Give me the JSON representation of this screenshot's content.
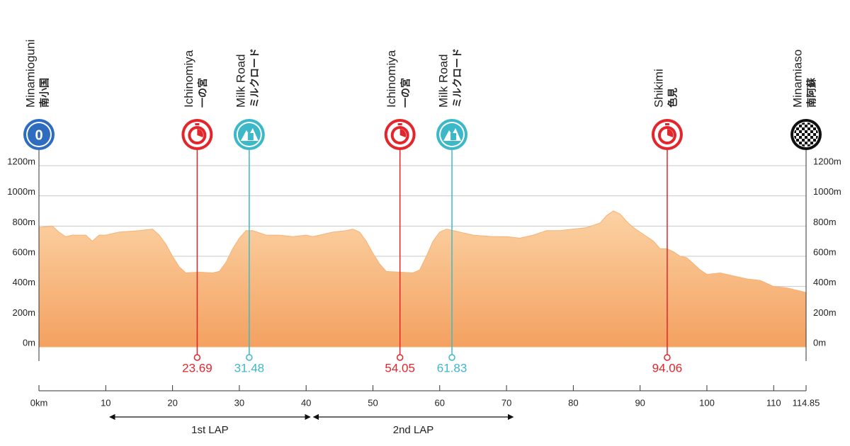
{
  "chart_data": {
    "type": "area",
    "x": [
      0,
      2,
      3,
      4,
      5,
      7,
      8,
      9,
      10,
      12,
      15,
      17,
      18,
      19,
      20,
      21,
      22,
      24,
      26,
      27,
      28,
      29,
      30,
      31,
      32,
      34,
      36,
      38,
      40,
      41,
      42,
      44,
      46,
      47,
      48,
      49,
      50,
      51,
      52,
      54,
      56,
      57,
      58,
      59,
      60,
      61,
      63,
      65,
      68,
      70,
      72,
      74,
      76,
      78,
      80,
      82,
      84,
      85,
      86,
      87,
      88,
      89,
      90,
      92,
      93,
      94,
      95,
      96,
      97,
      99,
      100,
      102,
      104,
      106,
      108,
      110,
      112,
      114,
      114.85
    ],
    "values": [
      790,
      800,
      760,
      730,
      740,
      740,
      700,
      740,
      740,
      760,
      770,
      780,
      740,
      680,
      600,
      530,
      490,
      495,
      490,
      500,
      560,
      650,
      720,
      770,
      770,
      740,
      740,
      730,
      740,
      730,
      740,
      760,
      770,
      780,
      760,
      700,
      620,
      550,
      500,
      495,
      490,
      510,
      600,
      700,
      760,
      780,
      760,
      740,
      730,
      730,
      720,
      740,
      770,
      770,
      780,
      790,
      820,
      870,
      900,
      880,
      830,
      790,
      760,
      700,
      650,
      650,
      630,
      600,
      590,
      510,
      480,
      490,
      470,
      450,
      440,
      400,
      390,
      370,
      360
    ],
    "color": "#f6b276",
    "xlim": [
      0,
      114.85
    ],
    "ylim": [
      0,
      1200
    ],
    "xticks": [
      {
        "value": 0,
        "label": "0km"
      },
      10,
      20,
      30,
      40,
      50,
      60,
      70,
      80,
      90,
      100,
      110,
      114.85
    ],
    "yticks": [
      {
        "value": 0,
        "label": "0m"
      },
      {
        "value": 200,
        "label": "200m"
      },
      {
        "value": 400,
        "label": "400m"
      },
      {
        "value": 600,
        "label": "600m"
      },
      {
        "value": 800,
        "label": "800m"
      },
      {
        "value": 1000,
        "label": "1000m"
      },
      {
        "value": 1200,
        "label": "1200m"
      }
    ],
    "grid": true,
    "markers": [
      {
        "name": "Minamioguni",
        "name_ja": "南小国",
        "x": 0,
        "icon": "start",
        "color": "#2e6cc0"
      },
      {
        "name": "Ichinomiya",
        "name_ja": "一の宮",
        "x": 23.69,
        "icon": "timer",
        "color": "#e3262b"
      },
      {
        "name": "Milk Road",
        "name_ja": "ミルクロード",
        "x": 31.48,
        "icon": "climb",
        "color": "#3db8c9"
      },
      {
        "name": "Ichinomiya",
        "name_ja": "一の宮",
        "x": 54.05,
        "icon": "timer",
        "color": "#e3262b"
      },
      {
        "name": "Milk Road",
        "name_ja": "ミルクロード",
        "x": 61.83,
        "icon": "climb",
        "color": "#3db8c9"
      },
      {
        "name": "Shikimi",
        "name_ja": "色見",
        "x": 94.06,
        "icon": "timer",
        "color": "#e3262b"
      },
      {
        "name": "Minamiaso",
        "name_ja": "南阿蘇",
        "x": 114.85,
        "icon": "finish",
        "color": "#111111"
      }
    ],
    "laps": [
      {
        "name": "1st LAP",
        "range": [
          10.6,
          40.6
        ]
      },
      {
        "name": "2nd LAP",
        "range": [
          41.1,
          71
        ]
      }
    ]
  }
}
